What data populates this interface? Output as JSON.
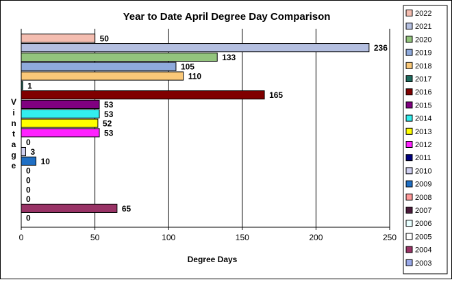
{
  "chart_data": {
    "type": "bar",
    "orientation": "horizontal",
    "title": "Year to Date April  Degree Day Comparison",
    "xlabel": "Degree Days",
    "ylabel": "Vintage",
    "xlim": [
      0,
      250
    ],
    "xticks": [
      0,
      50,
      100,
      150,
      200,
      250
    ],
    "grid": true,
    "legend_position": "right",
    "categories": [
      "2022",
      "2021",
      "2020",
      "2019",
      "2018",
      "2017",
      "2016",
      "2015",
      "2014",
      "2013",
      "2012",
      "2011",
      "2010",
      "2009",
      "2008",
      "2007",
      "2006",
      "2005",
      "2004",
      "2003"
    ],
    "values": [
      50,
      236,
      133,
      105,
      110,
      1,
      165,
      53,
      53,
      52,
      53,
      0,
      3,
      10,
      0,
      0,
      0,
      0,
      65,
      0
    ],
    "colors": [
      "#F4BDB0",
      "#B4BFE0",
      "#93C47D",
      "#8FAADC",
      "#FAC878",
      "#1E6B5E",
      "#800000",
      "#800080",
      "#33EEEE",
      "#FFFF00",
      "#FF22FF",
      "#000080",
      "#D0D0F0",
      "#1F6FC4",
      "#FF9999",
      "#4A1A3A",
      "#E8FFFF",
      "#FFFFFF",
      "#993366",
      "#99A8E8"
    ]
  }
}
